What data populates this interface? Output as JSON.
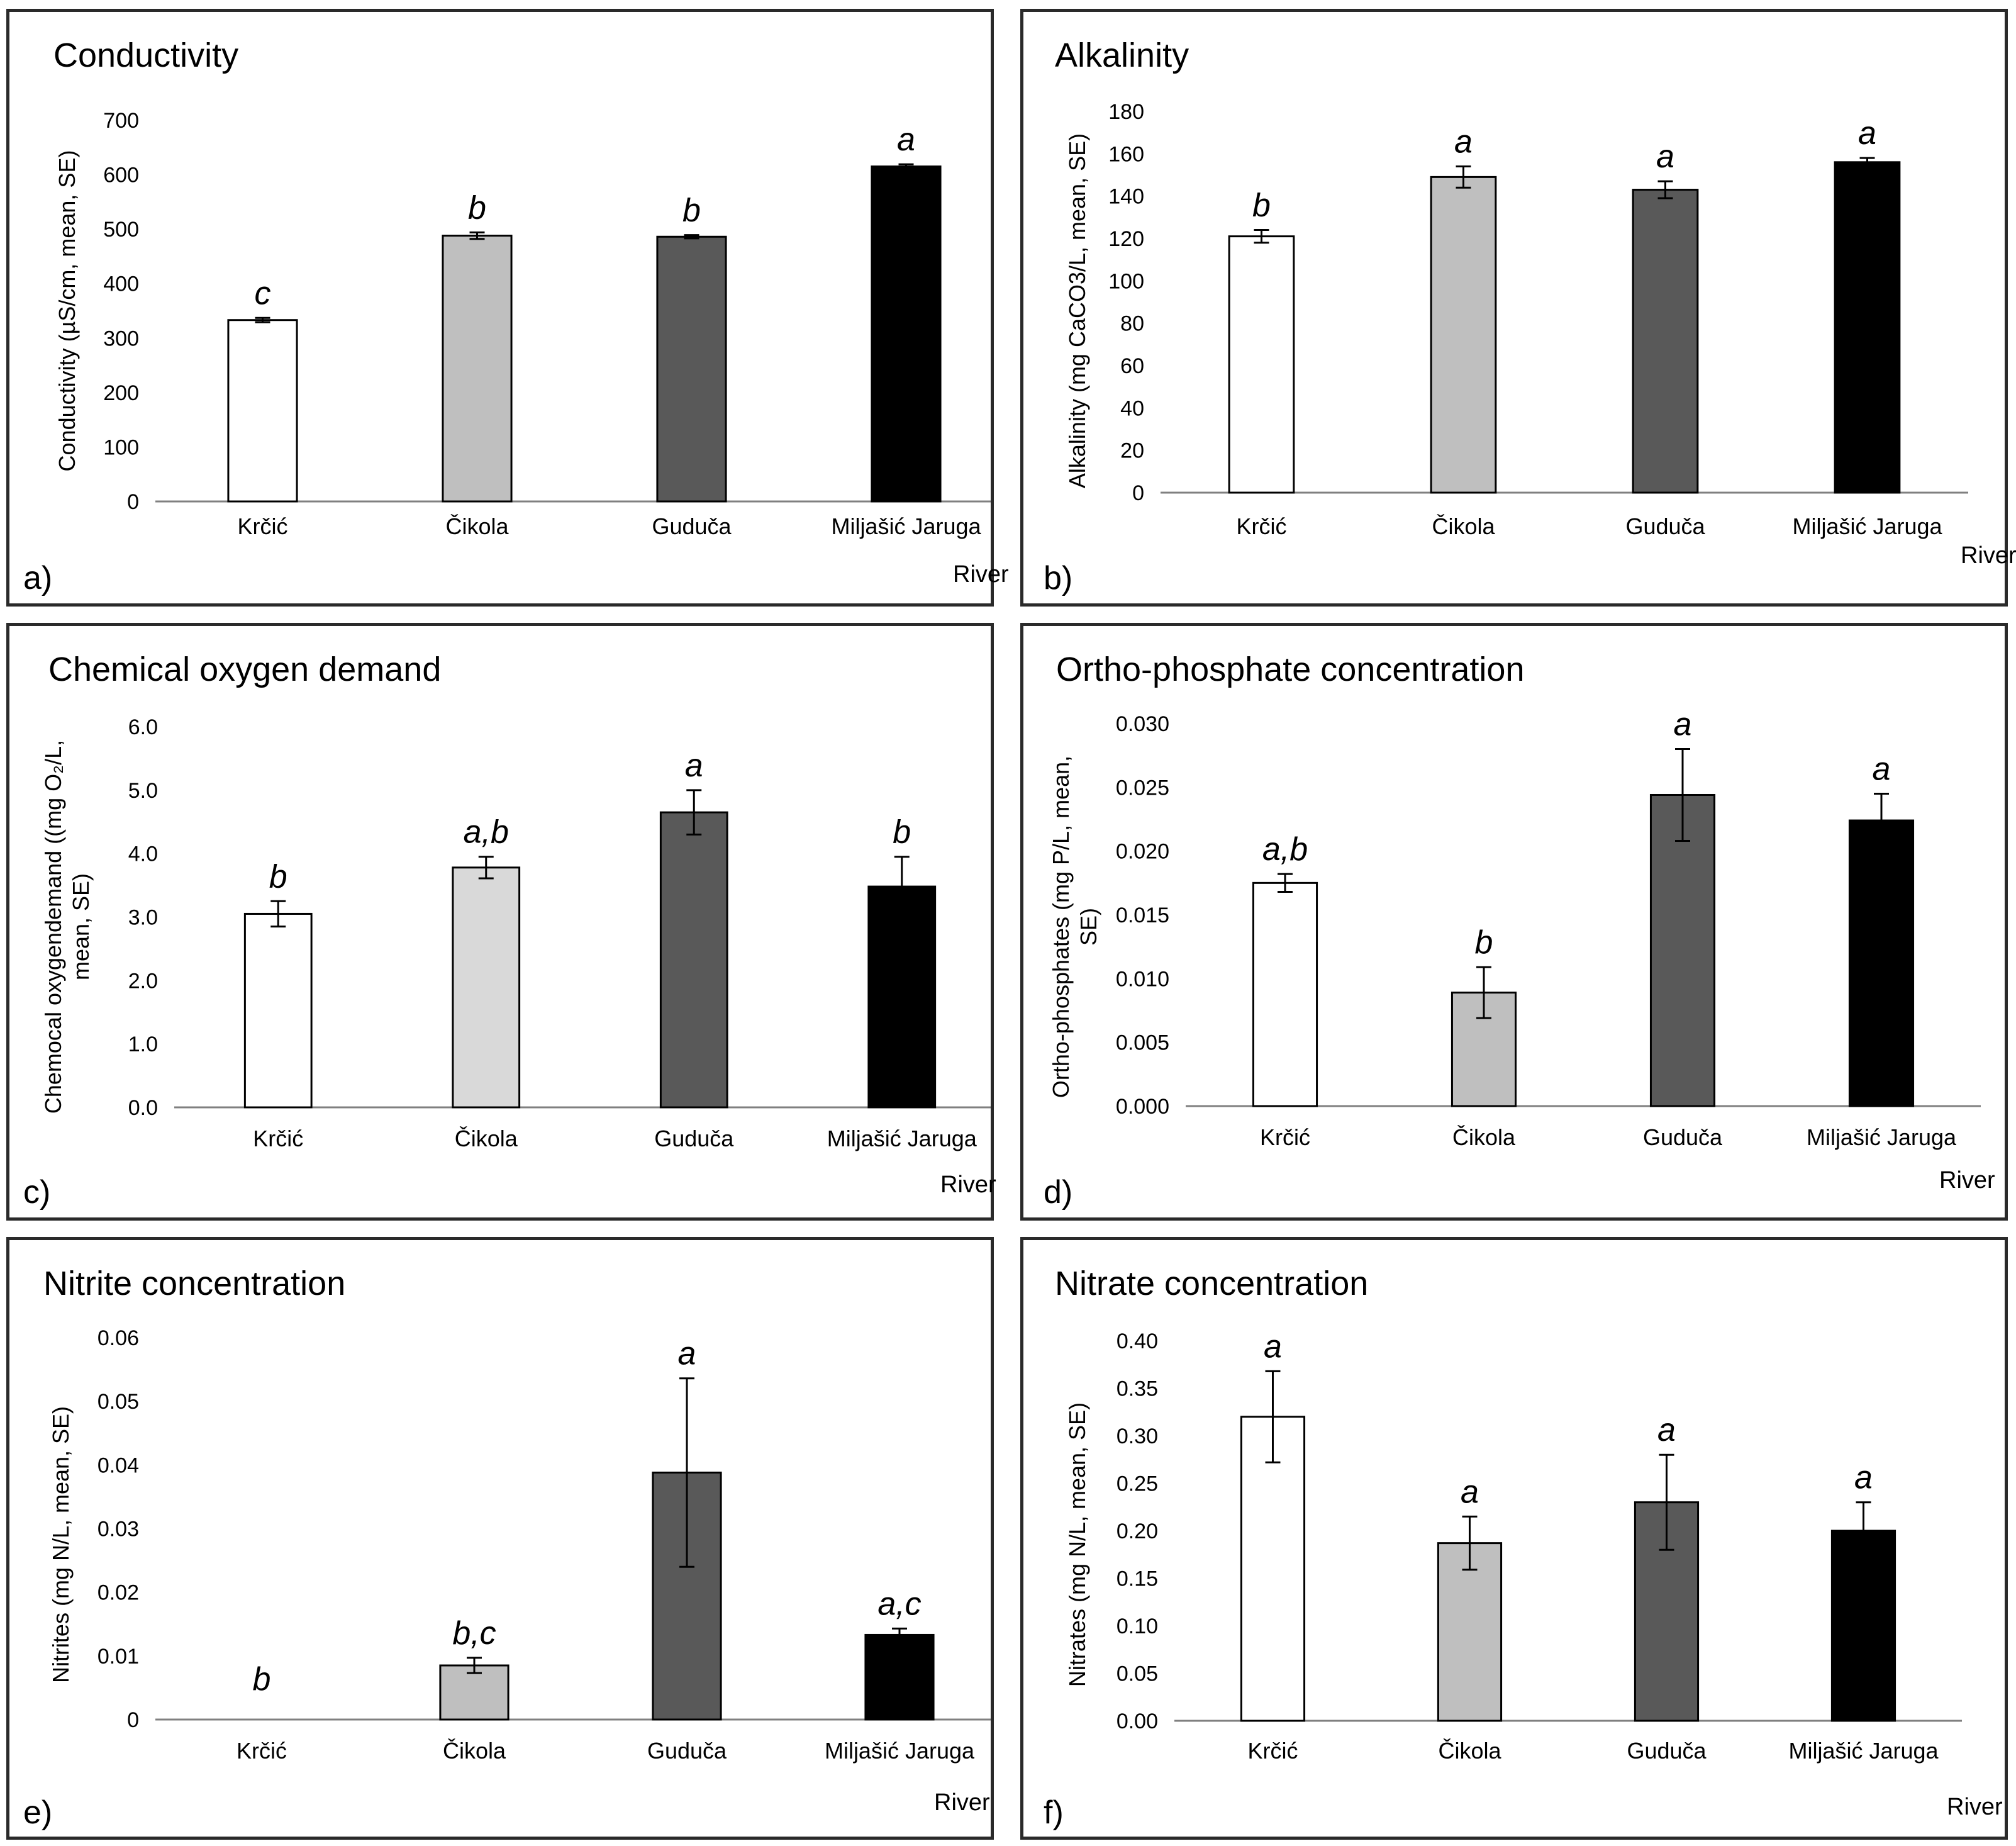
{
  "chart_data": [
    {
      "type": "bar",
      "panel": "a)",
      "title": "Conductivity",
      "xlabel": "River",
      "ylabel": "Conductivity  (µS/cm, mean, SE)",
      "ylim": [
        0,
        700
      ],
      "yticks": [
        "0",
        "100",
        "200",
        "300",
        "400",
        "500",
        "600",
        "700"
      ],
      "categories": [
        "Krčić",
        "Čikola",
        "Guduča",
        "Miljašić  Jaruga"
      ],
      "values": [
        333,
        488,
        486,
        615
      ],
      "errors": [
        4,
        6,
        3,
        4
      ],
      "letters": [
        "c",
        "b",
        "b",
        "a"
      ],
      "colors": [
        "#ffffff",
        "#bfbfbf",
        "#595959",
        "#000000"
      ]
    },
    {
      "type": "bar",
      "panel": "b)",
      "title": "Alkalinity",
      "xlabel": "River",
      "ylabel": "Alkalinity  (mg CaCO3/L, mean, SE)",
      "ylim": [
        0,
        180
      ],
      "yticks": [
        "0",
        "20",
        "40",
        "60",
        "80",
        "100",
        "120",
        "140",
        "160",
        "180"
      ],
      "categories": [
        "Krčić",
        "Čikola",
        "Guduča",
        "Miljašić  Jaruga"
      ],
      "values": [
        121,
        149,
        143,
        156
      ],
      "errors": [
        3,
        5,
        4,
        2
      ],
      "letters": [
        "b",
        "a",
        "a",
        "a"
      ],
      "colors": [
        "#ffffff",
        "#bfbfbf",
        "#595959",
        "#000000"
      ]
    },
    {
      "type": "bar",
      "panel": "c)",
      "title": "Chemical oxygen  demand",
      "xlabel": "River",
      "ylabel_lines": [
        "Chemocal oxygendemand ((mg O₂/L,",
        "mean, SE)"
      ],
      "ylim": [
        0,
        6
      ],
      "yticks": [
        "0.0",
        "1.0",
        "2.0",
        "3.0",
        "4.0",
        "5.0",
        "6.0"
      ],
      "categories": [
        "Krčić",
        "Čikola",
        "Guduča",
        "Miljašić  Jaruga"
      ],
      "values": [
        3.05,
        3.78,
        4.65,
        3.48
      ],
      "errors": [
        0.2,
        0.17,
        0.35,
        0.47
      ],
      "letters": [
        "b",
        "a,b",
        "a",
        "b"
      ],
      "colors": [
        "#ffffff",
        "#d9d9d9",
        "#595959",
        "#000000"
      ]
    },
    {
      "type": "bar",
      "panel": "d)",
      "title": "Ortho-phosphate concentration",
      "xlabel": "River",
      "ylabel_lines": [
        "Ortho-phosphates (mg P/L, mean,",
        "SE)"
      ],
      "ylim": [
        0,
        0.03
      ],
      "yticks": [
        "0.000",
        "0.005",
        "0.010",
        "0.015",
        "0.020",
        "0.025",
        "0.030"
      ],
      "categories": [
        "Krčić",
        "Čikola",
        "Guduča",
        "Miljašić  Jaruga"
      ],
      "values": [
        0.0175,
        0.0089,
        0.0244,
        0.0224
      ],
      "errors": [
        0.0007,
        0.002,
        0.0036,
        0.0021
      ],
      "letters": [
        "a,b",
        "b",
        "a",
        "a"
      ],
      "colors": [
        "#ffffff",
        "#bfbfbf",
        "#595959",
        "#000000"
      ]
    },
    {
      "type": "bar",
      "panel": "e)",
      "title": "Nitrite concentration",
      "xlabel": "River",
      "ylabel": "Nitrites (mg N/L, mean, SE)",
      "ylim": [
        0,
        0.06
      ],
      "yticks": [
        "0",
        "0.01",
        "0.02",
        "0.03",
        "0.04",
        "0.05",
        "0.06"
      ],
      "categories": [
        "Krčić",
        "Čikola",
        "Guduča",
        "Miljašić  Jaruga"
      ],
      "values": [
        0,
        0.0085,
        0.0388,
        0.0133
      ],
      "errors": [
        0,
        0.0012,
        0.0148,
        0.001
      ],
      "letters": [
        "b",
        "b,c",
        "a",
        "a,c"
      ],
      "colors": [
        "#ffffff",
        "#bfbfbf",
        "#595959",
        "#000000"
      ]
    },
    {
      "type": "bar",
      "panel": "f)",
      "title": "Nitrate concentration",
      "xlabel": "River",
      "ylabel": "Nitrates (mg N/L, mean, SE)",
      "ylim": [
        0,
        0.4
      ],
      "yticks": [
        "0.00",
        "0.05",
        "0.10",
        "0.15",
        "0.20",
        "0.25",
        "0.30",
        "0.35",
        "0.40"
      ],
      "categories": [
        "Krčić",
        "Čikola",
        "Guduča",
        "Miljašić  Jaruga"
      ],
      "values": [
        0.32,
        0.187,
        0.23,
        0.2
      ],
      "errors": [
        0.048,
        0.028,
        0.05,
        0.03
      ],
      "letters": [
        "a",
        "a",
        "a",
        "a"
      ],
      "colors": [
        "#ffffff",
        "#bfbfbf",
        "#595959",
        "#000000"
      ]
    }
  ]
}
